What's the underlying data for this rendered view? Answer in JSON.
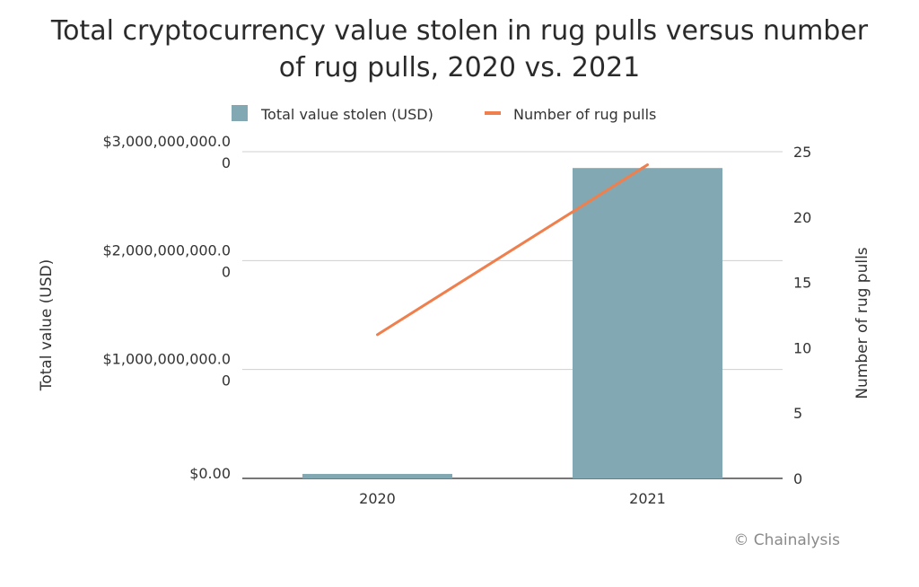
{
  "chart_data": {
    "type": "bar",
    "title": "Total cryptocurrency value stolen in rug pulls versus number of rug pulls, 2020 vs. 2021",
    "categories": [
      "2020",
      "2021"
    ],
    "series": [
      {
        "name": "Total value stolen (USD)",
        "type": "bar",
        "axis": "left",
        "values": [
          41000000,
          2850000000
        ],
        "color": "#82a9b3"
      },
      {
        "name": "Number of rug pulls",
        "type": "line",
        "axis": "right",
        "values": [
          11,
          24
        ],
        "color": "#ef7f4d"
      }
    ],
    "ylabel": "Total value (USD)",
    "y2label": "Number of rug pulls",
    "ylim": [
      0,
      3000000000
    ],
    "y2lim": [
      0,
      25
    ],
    "y_ticks": [
      {
        "value": 0,
        "label": "$0.00"
      },
      {
        "value": 1000000000,
        "label": "$1,000,000,000.0",
        "label_cont": "0"
      },
      {
        "value": 2000000000,
        "label": "$2,000,000,000.0",
        "label_cont": "0"
      },
      {
        "value": 3000000000,
        "label": "$3,000,000,000.0",
        "label_cont": "0"
      }
    ],
    "y2_ticks": [
      {
        "value": 0,
        "label": "0"
      },
      {
        "value": 5,
        "label": "5"
      },
      {
        "value": 10,
        "label": "10"
      },
      {
        "value": 15,
        "label": "15"
      },
      {
        "value": 20,
        "label": "20"
      },
      {
        "value": 25,
        "label": "25"
      }
    ],
    "legend_position": "top",
    "grid": true
  },
  "copyright": "© Chainalysis"
}
